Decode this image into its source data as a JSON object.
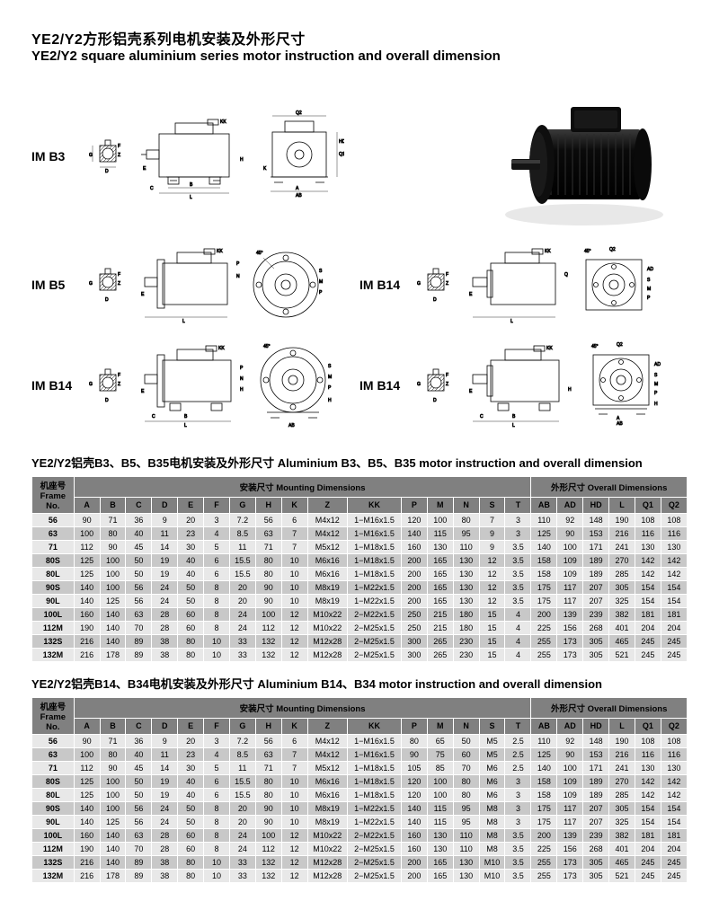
{
  "titles": {
    "cn": "YE2/Y2方形铝壳系列电机安装及外形尺寸",
    "en": "YE2/Y2 square aluminium series motor instruction and overall dimension"
  },
  "mount_labels": {
    "b3": "IM B3",
    "b5": "IM B5",
    "b14a": "IM B14",
    "b14b": "IM B14",
    "b14c": "IM B14"
  },
  "section_titles": {
    "t1": "YE2/Y2铝壳B3、B5、B35电机安装及外形尺寸 Aluminium B3、B5、B35 motor instruction and overall dimension",
    "t2": "YE2/Y2铝壳B14、B34电机安装及外形尺寸 Aluminium B14、B34 motor instruction and overall dimension"
  },
  "drawing_letters": [
    "A",
    "B",
    "C",
    "D",
    "E",
    "F",
    "G",
    "H",
    "K",
    "L",
    "P",
    "M",
    "N",
    "S",
    "T",
    "AB",
    "AD",
    "HD",
    "Q1",
    "Q2",
    "KK"
  ],
  "photo": {
    "body_color": "#0f0f0f",
    "highlight_color": "#3a3a3a",
    "shadow_color": "#e0e0e0"
  },
  "table1": {
    "header_groups": {
      "frame": "机座号\nFrame No.",
      "mount": "安装尺寸 Mounting Dimensions",
      "overall": "外形尺寸 Overall Dimensions"
    },
    "columns": [
      "A",
      "B",
      "C",
      "D",
      "E",
      "F",
      "G",
      "H",
      "K",
      "Z",
      "KK",
      "P",
      "M",
      "N",
      "S",
      "T",
      "AB",
      "AD",
      "HD",
      "L",
      "Q1",
      "Q2"
    ],
    "rows": [
      [
        "56",
        "90",
        "71",
        "36",
        "9",
        "20",
        "3",
        "7.2",
        "56",
        "6",
        "M4x12",
        "1−M16x1.5",
        "120",
        "100",
        "80",
        "7",
        "3",
        "110",
        "92",
        "148",
        "190",
        "108",
        "108"
      ],
      [
        "63",
        "100",
        "80",
        "40",
        "11",
        "23",
        "4",
        "8.5",
        "63",
        "7",
        "M4x12",
        "1−M16x1.5",
        "140",
        "115",
        "95",
        "9",
        "3",
        "125",
        "90",
        "153",
        "216",
        "116",
        "116"
      ],
      [
        "71",
        "112",
        "90",
        "45",
        "14",
        "30",
        "5",
        "11",
        "71",
        "7",
        "M5x12",
        "1−M18x1.5",
        "160",
        "130",
        "110",
        "9",
        "3.5",
        "140",
        "100",
        "171",
        "241",
        "130",
        "130"
      ],
      [
        "80S",
        "125",
        "100",
        "50",
        "19",
        "40",
        "6",
        "15.5",
        "80",
        "10",
        "M6x16",
        "1−M18x1.5",
        "200",
        "165",
        "130",
        "12",
        "3.5",
        "158",
        "109",
        "189",
        "270",
        "142",
        "142"
      ],
      [
        "80L",
        "125",
        "100",
        "50",
        "19",
        "40",
        "6",
        "15.5",
        "80",
        "10",
        "M6x16",
        "1−M18x1.5",
        "200",
        "165",
        "130",
        "12",
        "3.5",
        "158",
        "109",
        "189",
        "285",
        "142",
        "142"
      ],
      [
        "90S",
        "140",
        "100",
        "56",
        "24",
        "50",
        "8",
        "20",
        "90",
        "10",
        "M8x19",
        "1−M22x1.5",
        "200",
        "165",
        "130",
        "12",
        "3.5",
        "175",
        "117",
        "207",
        "305",
        "154",
        "154"
      ],
      [
        "90L",
        "140",
        "125",
        "56",
        "24",
        "50",
        "8",
        "20",
        "90",
        "10",
        "M8x19",
        "1−M22x1.5",
        "200",
        "165",
        "130",
        "12",
        "3.5",
        "175",
        "117",
        "207",
        "325",
        "154",
        "154"
      ],
      [
        "100L",
        "160",
        "140",
        "63",
        "28",
        "60",
        "8",
        "24",
        "100",
        "12",
        "M10x22",
        "2−M22x1.5",
        "250",
        "215",
        "180",
        "15",
        "4",
        "200",
        "139",
        "239",
        "382",
        "181",
        "181"
      ],
      [
        "112M",
        "190",
        "140",
        "70",
        "28",
        "60",
        "8",
        "24",
        "112",
        "12",
        "M10x22",
        "2−M25x1.5",
        "250",
        "215",
        "180",
        "15",
        "4",
        "225",
        "156",
        "268",
        "401",
        "204",
        "204"
      ],
      [
        "132S",
        "216",
        "140",
        "89",
        "38",
        "80",
        "10",
        "33",
        "132",
        "12",
        "M12x28",
        "2−M25x1.5",
        "300",
        "265",
        "230",
        "15",
        "4",
        "255",
        "173",
        "305",
        "465",
        "245",
        "245"
      ],
      [
        "132M",
        "216",
        "178",
        "89",
        "38",
        "80",
        "10",
        "33",
        "132",
        "12",
        "M12x28",
        "2−M25x1.5",
        "300",
        "265",
        "230",
        "15",
        "4",
        "255",
        "173",
        "305",
        "521",
        "245",
        "245"
      ]
    ]
  },
  "table2": {
    "header_groups": {
      "frame": "机座号\nFrame No.",
      "mount": "安装尺寸 Mounting Dimensions",
      "overall": "外形尺寸 Overall Dimensions"
    },
    "columns": [
      "A",
      "B",
      "C",
      "D",
      "E",
      "F",
      "G",
      "H",
      "K",
      "Z",
      "KK",
      "P",
      "M",
      "N",
      "S",
      "T",
      "AB",
      "AD",
      "HD",
      "L",
      "Q1",
      "Q2"
    ],
    "rows": [
      [
        "56",
        "90",
        "71",
        "36",
        "9",
        "20",
        "3",
        "7.2",
        "56",
        "6",
        "M4x12",
        "1−M16x1.5",
        "80",
        "65",
        "50",
        "M5",
        "2.5",
        "110",
        "92",
        "148",
        "190",
        "108",
        "108"
      ],
      [
        "63",
        "100",
        "80",
        "40",
        "11",
        "23",
        "4",
        "8.5",
        "63",
        "7",
        "M4x12",
        "1−M16x1.5",
        "90",
        "75",
        "60",
        "M5",
        "2.5",
        "125",
        "90",
        "153",
        "216",
        "116",
        "116"
      ],
      [
        "71",
        "112",
        "90",
        "45",
        "14",
        "30",
        "5",
        "11",
        "71",
        "7",
        "M5x12",
        "1−M18x1.5",
        "105",
        "85",
        "70",
        "M6",
        "2.5",
        "140",
        "100",
        "171",
        "241",
        "130",
        "130"
      ],
      [
        "80S",
        "125",
        "100",
        "50",
        "19",
        "40",
        "6",
        "15.5",
        "80",
        "10",
        "M6x16",
        "1−M18x1.5",
        "120",
        "100",
        "80",
        "M6",
        "3",
        "158",
        "109",
        "189",
        "270",
        "142",
        "142"
      ],
      [
        "80L",
        "125",
        "100",
        "50",
        "19",
        "40",
        "6",
        "15.5",
        "80",
        "10",
        "M6x16",
        "1−M18x1.5",
        "120",
        "100",
        "80",
        "M6",
        "3",
        "158",
        "109",
        "189",
        "285",
        "142",
        "142"
      ],
      [
        "90S",
        "140",
        "100",
        "56",
        "24",
        "50",
        "8",
        "20",
        "90",
        "10",
        "M8x19",
        "1−M22x1.5",
        "140",
        "115",
        "95",
        "M8",
        "3",
        "175",
        "117",
        "207",
        "305",
        "154",
        "154"
      ],
      [
        "90L",
        "140",
        "125",
        "56",
        "24",
        "50",
        "8",
        "20",
        "90",
        "10",
        "M8x19",
        "1−M22x1.5",
        "140",
        "115",
        "95",
        "M8",
        "3",
        "175",
        "117",
        "207",
        "325",
        "154",
        "154"
      ],
      [
        "100L",
        "160",
        "140",
        "63",
        "28",
        "60",
        "8",
        "24",
        "100",
        "12",
        "M10x22",
        "2−M22x1.5",
        "160",
        "130",
        "110",
        "M8",
        "3.5",
        "200",
        "139",
        "239",
        "382",
        "181",
        "181"
      ],
      [
        "112M",
        "190",
        "140",
        "70",
        "28",
        "60",
        "8",
        "24",
        "112",
        "12",
        "M10x22",
        "2−M25x1.5",
        "160",
        "130",
        "110",
        "M8",
        "3.5",
        "225",
        "156",
        "268",
        "401",
        "204",
        "204"
      ],
      [
        "132S",
        "216",
        "140",
        "89",
        "38",
        "80",
        "10",
        "33",
        "132",
        "12",
        "M12x28",
        "2−M25x1.5",
        "200",
        "165",
        "130",
        "M10",
        "3.5",
        "255",
        "173",
        "305",
        "465",
        "245",
        "245"
      ],
      [
        "132M",
        "216",
        "178",
        "89",
        "38",
        "80",
        "10",
        "33",
        "132",
        "12",
        "M12x28",
        "2−M25x1.5",
        "200",
        "165",
        "130",
        "M10",
        "3.5",
        "255",
        "173",
        "305",
        "521",
        "245",
        "245"
      ]
    ]
  },
  "colors": {
    "header_bg": "#808080",
    "row_light": "#e8e8e8",
    "row_dark": "#c8c8c8",
    "border": "#ffffff"
  }
}
